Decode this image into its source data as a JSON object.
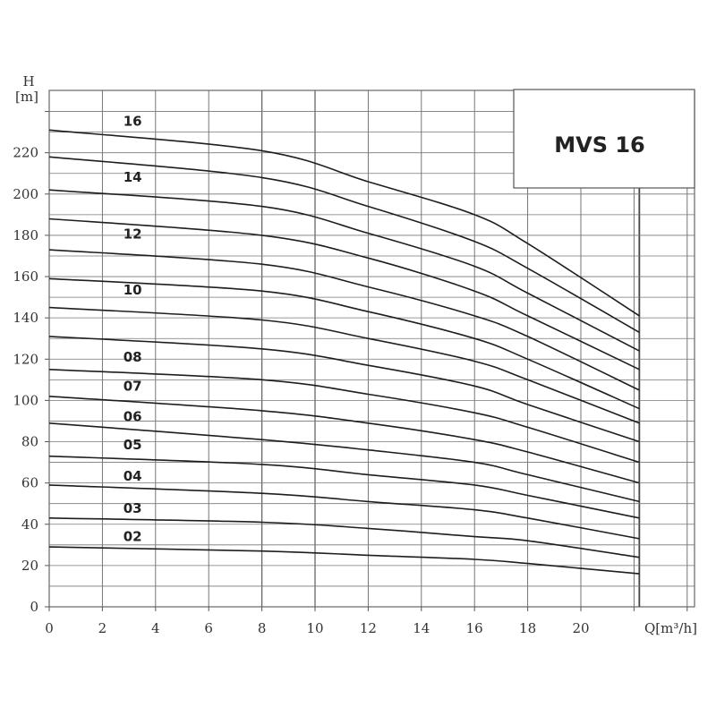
{
  "chart_data": {
    "type": "line",
    "title": "MVS 16",
    "ylabel_top": "H",
    "ylabel_unit": "[m]",
    "xlabel": "Q[m³/h]",
    "xlim": [
      0,
      25
    ],
    "ylim": [
      0,
      250
    ],
    "x_ticks": [
      0,
      2,
      4,
      6,
      8,
      10,
      12,
      14,
      16,
      18,
      20
    ],
    "y_ticks": [
      0,
      20,
      40,
      60,
      80,
      100,
      120,
      140,
      160,
      180,
      200,
      220
    ],
    "grid": true,
    "series": [
      {
        "name": "16",
        "label_x": 2.7,
        "label_y": 235.3,
        "points": [
          [
            0,
            231
          ],
          [
            8,
            221
          ],
          [
            12,
            206
          ],
          [
            16,
            190
          ],
          [
            18,
            176
          ],
          [
            22.2,
            141
          ]
        ]
      },
      {
        "name": "",
        "points": [
          [
            0,
            218
          ],
          [
            8,
            208
          ],
          [
            12,
            194
          ],
          [
            16,
            177
          ],
          [
            18,
            164
          ],
          [
            22.2,
            133
          ]
        ]
      },
      {
        "name": "14",
        "label_x": 2.7,
        "label_y": 208.2,
        "points": [
          [
            0,
            202
          ],
          [
            8,
            194
          ],
          [
            12,
            181
          ],
          [
            16,
            165
          ],
          [
            18,
            152
          ],
          [
            22.2,
            124
          ]
        ]
      },
      {
        "name": "",
        "points": [
          [
            0,
            188
          ],
          [
            8,
            180
          ],
          [
            12,
            169
          ],
          [
            16,
            153
          ],
          [
            18,
            141
          ],
          [
            22.2,
            115
          ]
        ]
      },
      {
        "name": "12",
        "label_x": 2.7,
        "label_y": 180.7,
        "points": [
          [
            0,
            173
          ],
          [
            8,
            166
          ],
          [
            12,
            155
          ],
          [
            16,
            141
          ],
          [
            18,
            131
          ],
          [
            22.2,
            105
          ]
        ]
      },
      {
        "name": "",
        "points": [
          [
            0,
            159
          ],
          [
            8,
            153
          ],
          [
            12,
            143
          ],
          [
            16,
            130
          ],
          [
            18,
            120
          ],
          [
            22.2,
            96
          ]
        ]
      },
      {
        "name": "10",
        "label_x": 2.7,
        "label_y": 153.6,
        "points": [
          [
            0,
            145
          ],
          [
            8,
            139
          ],
          [
            12,
            130
          ],
          [
            16,
            119
          ],
          [
            18,
            110
          ],
          [
            22.2,
            89
          ]
        ]
      },
      {
        "name": "",
        "points": [
          [
            0,
            131
          ],
          [
            8,
            125
          ],
          [
            12,
            117
          ],
          [
            16,
            107
          ],
          [
            18,
            98
          ],
          [
            22.2,
            80
          ]
        ]
      },
      {
        "name": "08",
        "label_x": 2.7,
        "label_y": 120.9,
        "points": [
          [
            0,
            115
          ],
          [
            8,
            110
          ],
          [
            12,
            103
          ],
          [
            16,
            94
          ],
          [
            18,
            87
          ],
          [
            22.2,
            70
          ]
        ]
      },
      {
        "name": "07",
        "label_x": 2.7,
        "label_y": 106.8,
        "points": [
          [
            0,
            102
          ],
          [
            8,
            95
          ],
          [
            12,
            89
          ],
          [
            16,
            81
          ],
          [
            18,
            75
          ],
          [
            22.2,
            60
          ]
        ]
      },
      {
        "name": "06",
        "label_x": 2.7,
        "label_y": 92.2,
        "points": [
          [
            0,
            89
          ],
          [
            8,
            81
          ],
          [
            12,
            76
          ],
          [
            16,
            70
          ],
          [
            18,
            64
          ],
          [
            22.2,
            51
          ]
        ]
      },
      {
        "name": "05",
        "label_x": 2.7,
        "label_y": 78.4,
        "points": [
          [
            0,
            73
          ],
          [
            8,
            69
          ],
          [
            12,
            64
          ],
          [
            16,
            59
          ],
          [
            18,
            54
          ],
          [
            22.2,
            43
          ]
        ]
      },
      {
        "name": "04",
        "label_x": 2.7,
        "label_y": 63.3,
        "points": [
          [
            0,
            59
          ],
          [
            8,
            55
          ],
          [
            12,
            51
          ],
          [
            16,
            47
          ],
          [
            18,
            43
          ],
          [
            22.2,
            33
          ]
        ]
      },
      {
        "name": "03",
        "label_x": 2.7,
        "label_y": 47.8,
        "points": [
          [
            0,
            43
          ],
          [
            8,
            41
          ],
          [
            12,
            38
          ],
          [
            16,
            34
          ],
          [
            18,
            32
          ],
          [
            22.2,
            24
          ]
        ]
      },
      {
        "name": "02",
        "label_x": 2.7,
        "label_y": 34.0,
        "points": [
          [
            0,
            29
          ],
          [
            8,
            27
          ],
          [
            12,
            25
          ],
          [
            16,
            23
          ],
          [
            18,
            21
          ],
          [
            22.2,
            16
          ]
        ]
      }
    ]
  }
}
